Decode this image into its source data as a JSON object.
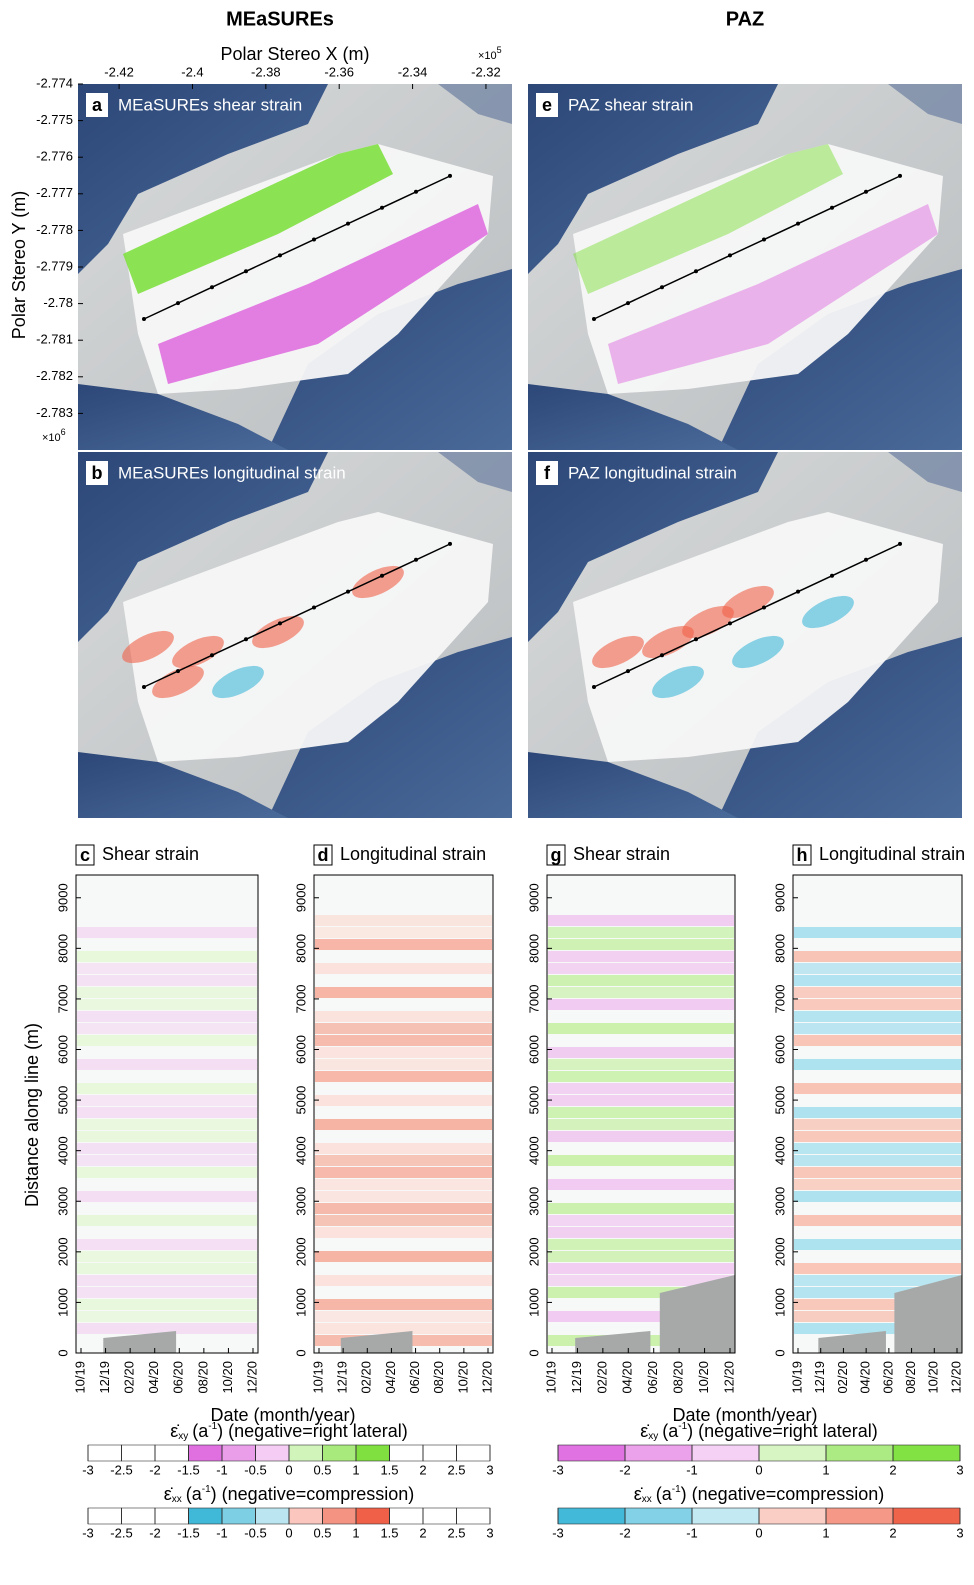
{
  "headers": [
    "MEaSUREs",
    "PAZ"
  ],
  "map_axes": {
    "xlabel": "Polar Stereo X (m)",
    "xticks": [
      -2.42,
      -2.4,
      -2.38,
      -2.36,
      -2.34,
      -2.32
    ],
    "xlim": [
      -2.4312,
      -2.3129
    ],
    "x_multiplier": {
      "base": "×10",
      "exp": "5"
    },
    "ylabel": "Polar Stereo Y (m)",
    "yticks": [
      -2.774,
      -2.775,
      -2.776,
      -2.777,
      -2.778,
      -2.779,
      -2.78,
      -2.781,
      -2.782,
      -2.783
    ],
    "ylim": [
      -2.784,
      -2.774
    ],
    "y_multiplier": {
      "base": "×10",
      "exp": "6"
    }
  },
  "maps": [
    {
      "letter": "a",
      "title": "MEaSUREs shear strain"
    },
    {
      "letter": "b",
      "title": "MEaSUREs longitudinal strain"
    },
    {
      "letter": "e",
      "title": "PAZ shear strain"
    },
    {
      "letter": "f",
      "title": "PAZ longitudinal strain"
    }
  ],
  "profiles": {
    "ylabel": "Distance along line (m)",
    "xlabel": "Date (month/year)",
    "yticks": [
      0,
      1000,
      2000,
      3000,
      4000,
      5000,
      6000,
      7000,
      8000,
      9000
    ],
    "ylim": [
      0,
      9450
    ],
    "dates": [
      "10/19",
      "12/19",
      "02/20",
      "04/20",
      "06/20",
      "08/20",
      "10/20",
      "12/20"
    ],
    "panels": [
      {
        "letter": "c",
        "title": "Shear strain"
      },
      {
        "letter": "d",
        "title": "Longitudinal strain"
      },
      {
        "letter": "g",
        "title": "Shear strain"
      },
      {
        "letter": "h",
        "title": "Longitudinal strain"
      }
    ]
  },
  "colorbars": [
    {
      "symbol": "ε̇",
      "sub": "xy",
      "unit_base": "(a",
      "unit_exp": "-1",
      "rest": ") (negative=right lateral)",
      "lim": [
        -3,
        3
      ],
      "ticks": [
        -3,
        -2.5,
        -2,
        -1.5,
        -1,
        -0.5,
        0,
        0.5,
        1,
        1.5,
        2,
        2.5,
        3
      ],
      "neg_color": "#e070e0",
      "pos_color": "#80e040"
    },
    {
      "symbol": "ε̇",
      "sub": "xx",
      "unit_base": "(a",
      "unit_exp": "-1",
      "rest": ") (negative=compression)",
      "lim": [
        -3,
        3
      ],
      "ticks": [
        -3,
        -2.5,
        -2,
        -1.5,
        -1,
        -0.5,
        0,
        0.5,
        1,
        1.5,
        2,
        2.5,
        3
      ],
      "neg_color": "#40b8d8",
      "pos_color": "#f06048"
    },
    {
      "symbol": "ε̇",
      "sub": "xy",
      "unit_base": "(a",
      "unit_exp": "-1",
      "rest": ") (negative=right lateral)",
      "lim": [
        -3,
        3
      ],
      "ticks": [
        -3,
        -2,
        -1,
        0,
        1,
        2,
        3
      ],
      "neg_color": "#e070e0",
      "pos_color": "#80e040"
    },
    {
      "symbol": "ε̇",
      "sub": "xx",
      "unit_base": "(a",
      "unit_exp": "-1",
      "rest": ") (negative=compression)",
      "lim": [
        -3,
        3
      ],
      "ticks": [
        -3,
        -2,
        -1,
        0,
        1,
        2,
        3
      ],
      "neg_color": "#40b8d8",
      "pos_color": "#f06048"
    }
  ]
}
